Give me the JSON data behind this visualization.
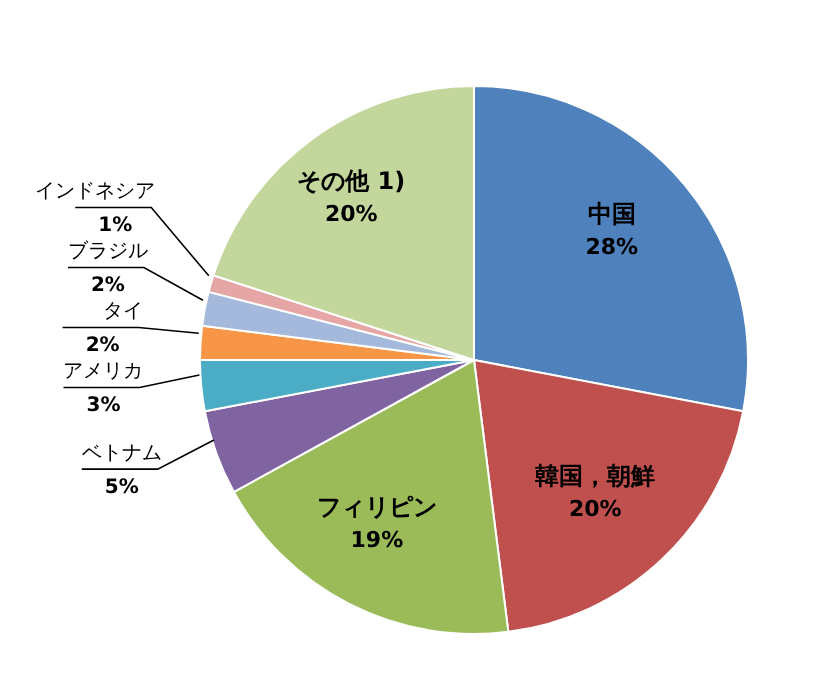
{
  "chart_data": {
    "type": "pie",
    "categories": [
      "中国",
      "韓国，朝鮮",
      "フィリピン",
      "ベトナム",
      "アメリカ",
      "タイ",
      "ブラジル",
      "インドネシア",
      "その他 1)"
    ],
    "values": [
      28,
      20,
      19,
      5,
      3,
      2,
      2,
      1,
      20
    ],
    "value_labels": [
      "28%",
      "20%",
      "19%",
      "5%",
      "3%",
      "2%",
      "2%",
      "1%",
      "20%"
    ],
    "colors": [
      "#4f81bd",
      "#c0504d",
      "#9bbb59",
      "#8064a2",
      "#4bacc6",
      "#f79646",
      "#a5b9dd",
      "#e6a6a6",
      "#c3d69b"
    ],
    "legend": false
  }
}
